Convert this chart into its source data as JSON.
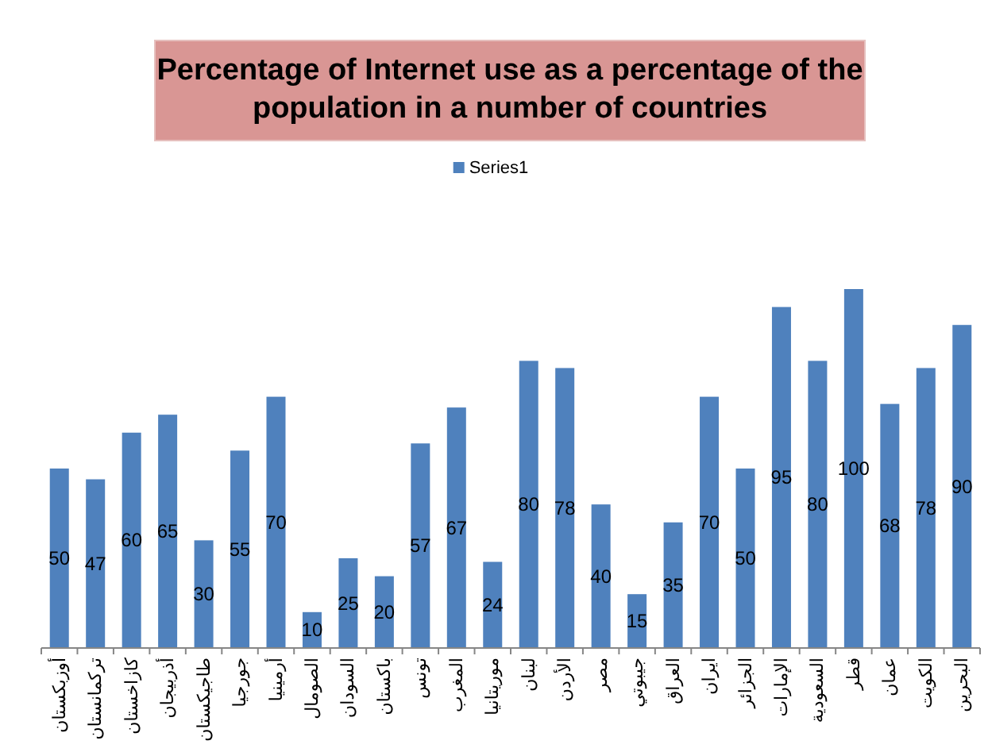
{
  "chart_data": {
    "type": "bar",
    "title": "Percentage of Internet use as a percentage of the population in a number of countries",
    "categories": [
      "أوزبكستان",
      "تركمانستان",
      "كازاخستان",
      "أذربيجان",
      "طاجيكستان",
      "جورجيا",
      "أرمينيا",
      "الصومال",
      "السودان",
      "باكستان",
      "تونس",
      "المغرب",
      "موريتانيا",
      "لبنان",
      "الأردن",
      "مصر",
      "جيبوتي",
      "العراق",
      "ايران",
      "الجزائر",
      "الإمارات",
      "السعودية",
      "قطر",
      "عمان",
      "الكويت",
      "البحرين"
    ],
    "series": [
      {
        "name": "Series1",
        "color": "#4f81bd",
        "values": [
          50,
          47,
          60,
          65,
          30,
          55,
          70,
          10,
          25,
          20,
          57,
          67,
          24,
          80,
          78,
          40,
          15,
          35,
          70,
          50,
          95,
          80,
          100,
          68,
          78,
          90
        ]
      }
    ],
    "tick_labels": "x",
    "data_labels": true,
    "legend": "top"
  }
}
